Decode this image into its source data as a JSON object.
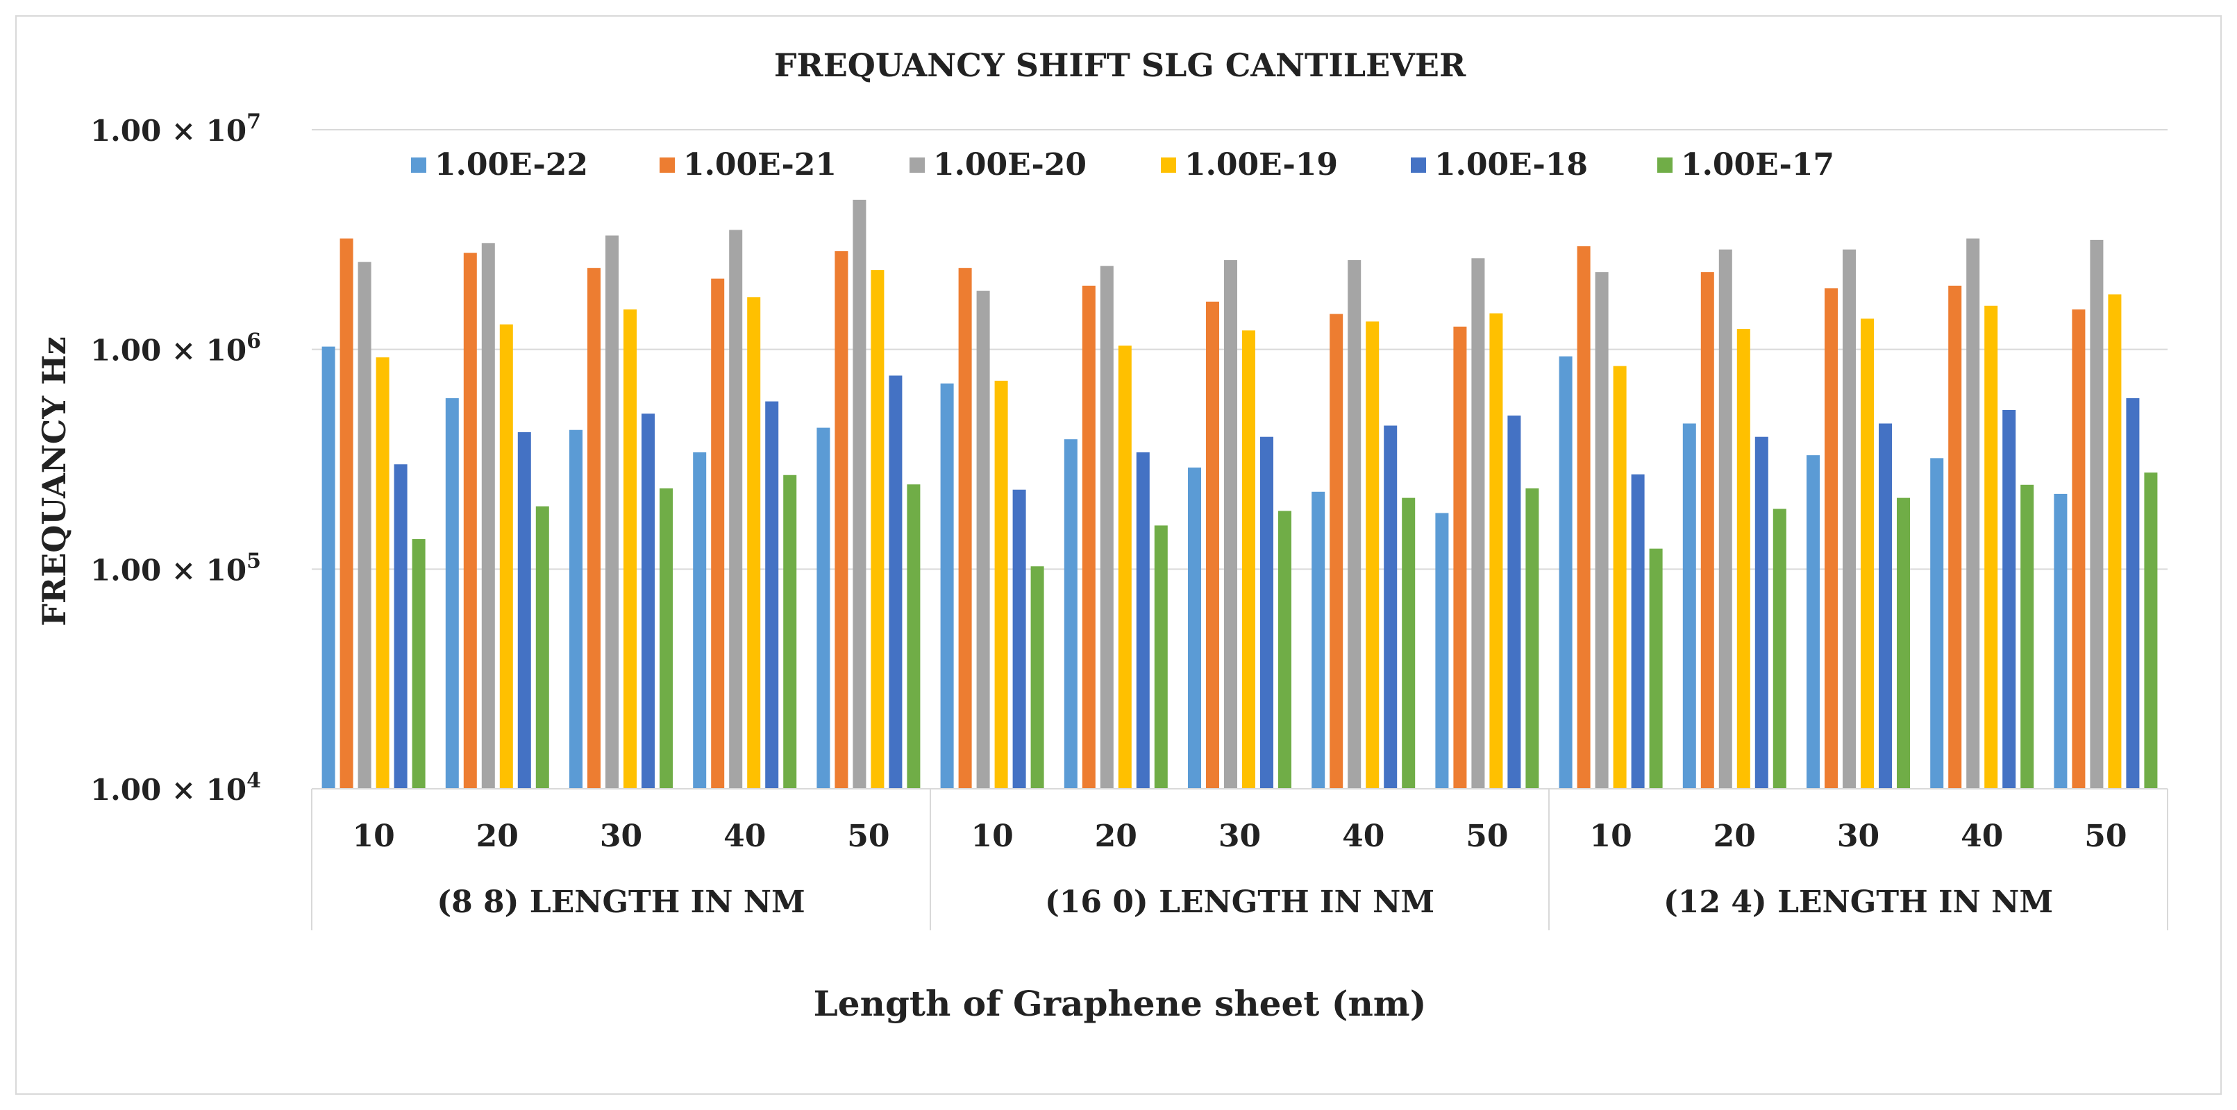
{
  "chart_data": {
    "type": "bar",
    "title": "FREQUANCY SHIFT SLG CANTILEVER",
    "ylabel": "FREQUANCY Hz",
    "xlabel": "Length of Graphene sheet (nm)",
    "yscale": "log",
    "ylim": [
      10000,
      10000000
    ],
    "yticks": [
      {
        "value": 10000,
        "mantissa": "1.00 × 10",
        "exp": "4"
      },
      {
        "value": 100000,
        "mantissa": "1.00 × 10",
        "exp": "5"
      },
      {
        "value": 1000000,
        "mantissa": "1.00 × 10",
        "exp": "6"
      },
      {
        "value": 10000000,
        "mantissa": "1.00 × 10",
        "exp": "7"
      }
    ],
    "grid": true,
    "legend_position": "top",
    "categories": [
      "10",
      "20",
      "30",
      "40",
      "50",
      "10",
      "20",
      "30",
      "40",
      "50",
      "10",
      "20",
      "30",
      "40",
      "50"
    ],
    "groups": [
      {
        "label": "(8 8) LENGTH IN NM",
        "span": 5
      },
      {
        "label": "(16 0) LENGTH IN NM",
        "span": 5
      },
      {
        "label": "(12 4) LENGTH IN NM",
        "span": 5
      }
    ],
    "series": [
      {
        "name": "1.00E-22",
        "color": "#5b9bd5",
        "values": [
          1030000,
          600000,
          430000,
          340000,
          440000,
          700000,
          390000,
          290000,
          225000,
          180000,
          930000,
          460000,
          330000,
          320000,
          220000
        ]
      },
      {
        "name": "1.00E-21",
        "color": "#ed7d31",
        "values": [
          3200000,
          2750000,
          2350000,
          2100000,
          2800000,
          2350000,
          1950000,
          1650000,
          1450000,
          1270000,
          2950000,
          2250000,
          1900000,
          1950000,
          1520000
        ]
      },
      {
        "name": "1.00E-20",
        "color": "#a5a5a5",
        "values": [
          2500000,
          3050000,
          3300000,
          3500000,
          4800000,
          1850000,
          2400000,
          2550000,
          2550000,
          2600000,
          2250000,
          2850000,
          2850000,
          3200000,
          3150000
        ]
      },
      {
        "name": "1.00E-19",
        "color": "#ffc000",
        "values": [
          920000,
          1300000,
          1520000,
          1730000,
          2300000,
          720000,
          1040000,
          1220000,
          1340000,
          1460000,
          840000,
          1240000,
          1380000,
          1580000,
          1780000
        ]
      },
      {
        "name": "1.00E-18",
        "color": "#4472c4",
        "values": [
          300000,
          420000,
          510000,
          580000,
          760000,
          230000,
          340000,
          400000,
          450000,
          500000,
          270000,
          400000,
          460000,
          530000,
          600000
        ]
      },
      {
        "name": "1.00E-17",
        "color": "#70ad47",
        "values": [
          137000,
          193000,
          233000,
          268000,
          243000,
          103000,
          158000,
          184000,
          211000,
          233000,
          124000,
          188000,
          211000,
          242000,
          275000
        ]
      }
    ]
  }
}
